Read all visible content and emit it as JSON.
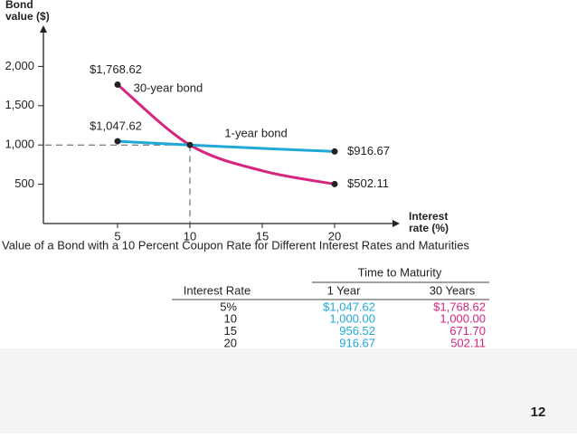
{
  "chart_data": {
    "type": "line",
    "ylabel": [
      "Bond",
      "value ($)"
    ],
    "xlabel": [
      "Interest",
      "rate (%)"
    ],
    "caption": "Value of a Bond with a 10 Percent Coupon Rate for Different Interest Rates and Maturities",
    "x": [
      5,
      10,
      15,
      20
    ],
    "series": [
      {
        "name": "30-year bond",
        "color": "#d6247f",
        "values": [
          1768.62,
          1000,
          671.7,
          502.11
        ],
        "value_labels": [
          "$1,768.62",
          null,
          null,
          "$502.11"
        ]
      },
      {
        "name": "1-year bond",
        "color": "#1fa8d8",
        "values": [
          1047.62,
          1000,
          956.52,
          916.67
        ],
        "value_labels": [
          "$1,047.62",
          null,
          null,
          "$916.67"
        ]
      }
    ],
    "reference": {
      "x": 10,
      "y": 1000
    },
    "xlim": [
      0,
      24
    ],
    "ylim": [
      0,
      2500
    ],
    "xticks": [
      5,
      10,
      15,
      20
    ],
    "yticks": [
      500,
      {
        "value": 1000,
        "label": "1,000"
      },
      {
        "value": 1500,
        "label": "1,500"
      },
      {
        "value": 2000,
        "label": "2,000"
      }
    ]
  },
  "table": {
    "title": "Time to Maturity",
    "columns": [
      "Interest Rate",
      "1 Year",
      "30 Years"
    ],
    "rows": [
      [
        "5%",
        "$1,047.62",
        "$1,768.62"
      ],
      [
        "10",
        "1,000.00",
        "1,000.00"
      ],
      [
        "15",
        "956.52",
        "671.70"
      ],
      [
        "20",
        "916.67",
        "502.11"
      ]
    ]
  },
  "page_number": "12"
}
